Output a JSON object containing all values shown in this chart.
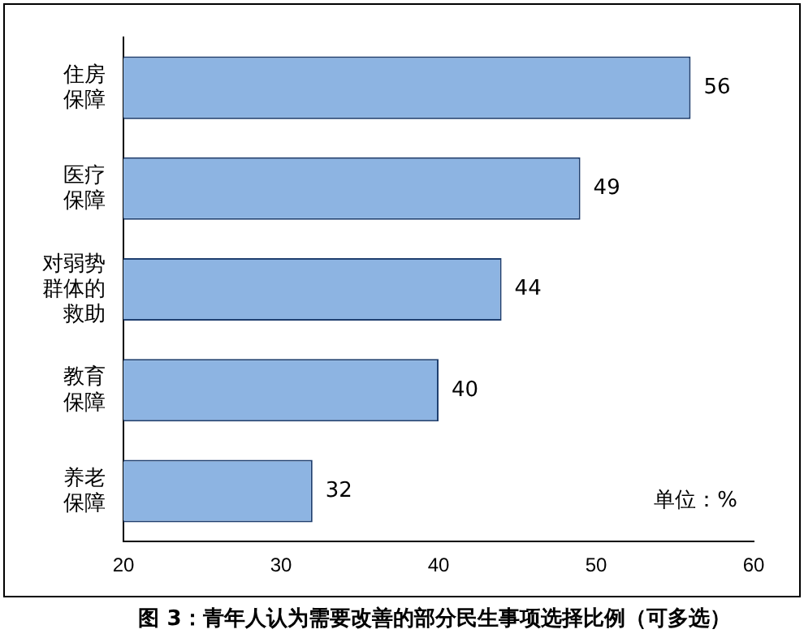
{
  "chart_data": {
    "type": "bar",
    "orientation": "horizontal",
    "title": "图 3：青年人认为需要改善的部分民生事项选择比例（可多选）",
    "categories": [
      "住房保障",
      "医疗保障",
      "对弱势群体的救助",
      "教育保障",
      "养老保障"
    ],
    "values": [
      56,
      49,
      44,
      40,
      32
    ],
    "color": "#8db4e2",
    "xlim": [
      20,
      60
    ],
    "xticks": [
      20,
      30,
      40,
      50,
      60
    ],
    "grid": false,
    "legend": false,
    "data_labels": true,
    "annotations": [
      "单位：%"
    ]
  }
}
